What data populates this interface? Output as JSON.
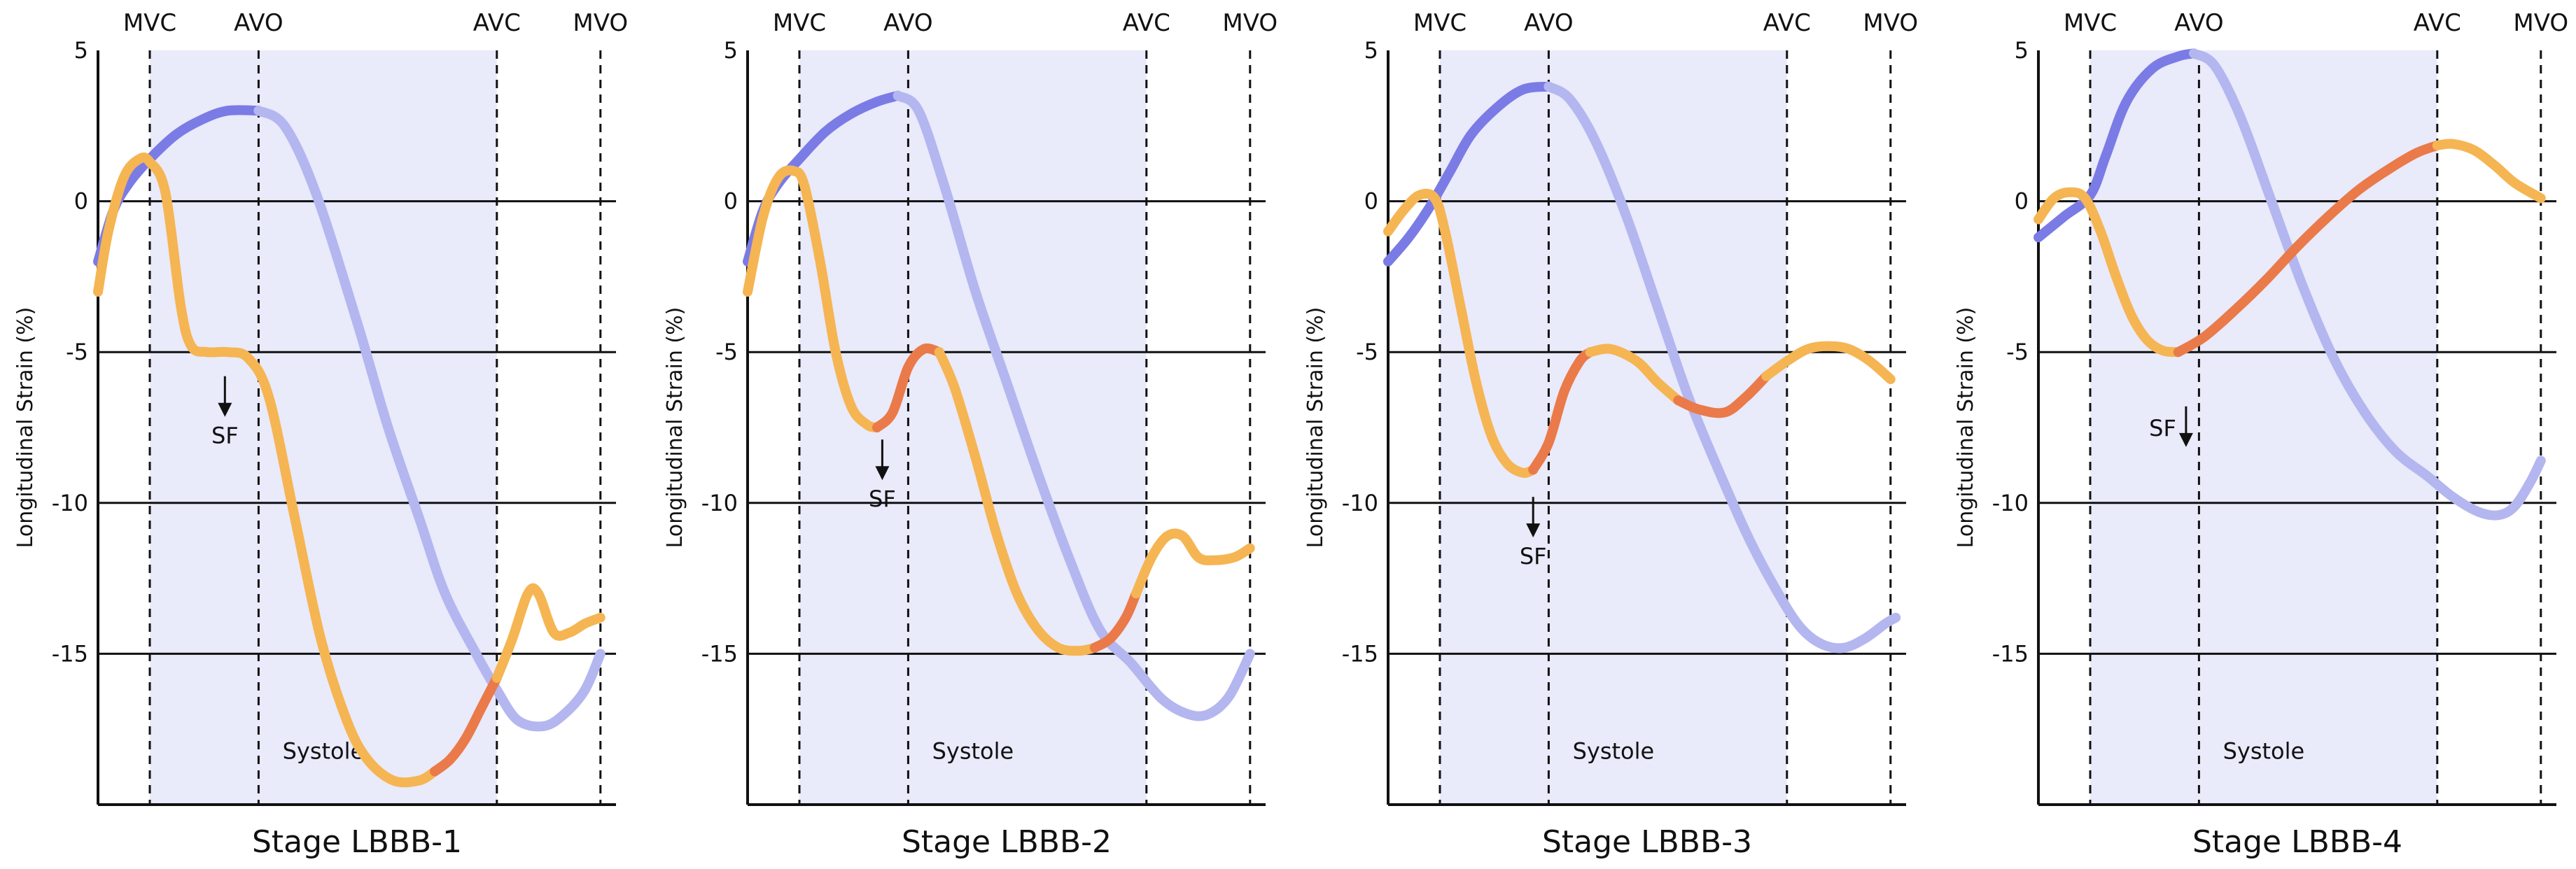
{
  "chart_data": [
    {
      "type": "line",
      "title": "Stage LBBB-1",
      "ylabel": "Longitudinal Strain (%)",
      "yticks": [
        5,
        0,
        -5,
        -10,
        -15
      ],
      "ylim": [
        -20,
        5
      ],
      "xlim": [
        0,
        1
      ],
      "events": [
        {
          "label": "MVC",
          "x": 0.1
        },
        {
          "label": "AVO",
          "x": 0.31
        },
        {
          "label": "AVC",
          "x": 0.77
        },
        {
          "label": "MVO",
          "x": 0.97
        }
      ],
      "shaded_region": {
        "label": "Systole",
        "from": 0.1,
        "to": 0.77
      },
      "annotation": {
        "label": "SF",
        "x": 0.245,
        "y": -5.8
      },
      "series": [
        {
          "role": "dark-blue-segment",
          "color": "#7b7be6",
          "x": [
            0.0,
            0.03,
            0.06,
            0.1,
            0.15,
            0.2,
            0.25,
            0.31
          ],
          "y": [
            -2,
            -0.3,
            0.6,
            1.4,
            2.2,
            2.7,
            3.0,
            3.0
          ]
        },
        {
          "role": "light-blue-segment",
          "color": "#b4b6f0",
          "x": [
            0.31,
            0.36,
            0.42,
            0.5,
            0.56,
            0.62,
            0.67,
            0.73,
            0.77,
            0.81,
            0.86,
            0.9,
            0.94,
            0.97
          ],
          "y": [
            3.0,
            2.5,
            0.3,
            -4.0,
            -7.5,
            -10.5,
            -13.0,
            -15.0,
            -16.2,
            -17.2,
            -17.4,
            -17.0,
            -16.2,
            -15.0
          ]
        },
        {
          "role": "yellow-segment",
          "color": "#f5b553",
          "x": [
            0.0,
            0.02,
            0.05,
            0.08,
            0.1,
            0.13,
            0.16,
            0.18,
            0.21,
            0.25,
            0.29,
            0.33,
            0.38,
            0.43,
            0.48,
            0.52,
            0.57,
            0.62,
            0.65
          ],
          "y": [
            -3,
            -1.0,
            0.8,
            1.4,
            1.3,
            0.3,
            -3.5,
            -4.8,
            -5.0,
            -5.0,
            -5.2,
            -6.5,
            -10.5,
            -14.5,
            -17.2,
            -18.5,
            -19.2,
            -19.2,
            -18.9
          ]
        },
        {
          "role": "orange-segment",
          "color": "#ea7a49",
          "x": [
            0.65,
            0.68,
            0.71,
            0.74,
            0.77
          ],
          "y": [
            -18.9,
            -18.5,
            -17.8,
            -16.8,
            -15.8
          ]
        },
        {
          "role": "yellow-tail",
          "color": "#f5b553",
          "x": [
            0.77,
            0.8,
            0.83,
            0.85,
            0.88,
            0.91,
            0.94,
            0.97
          ],
          "y": [
            -15.8,
            -14.5,
            -13.0,
            -13.0,
            -14.3,
            -14.3,
            -14.0,
            -13.8
          ]
        }
      ]
    },
    {
      "type": "line",
      "title": "Stage LBBB-2",
      "ylabel": "Longitudinal Strain (%)",
      "yticks": [
        5,
        0,
        -5,
        -10,
        -15
      ],
      "ylim": [
        -20,
        5
      ],
      "xlim": [
        0,
        1
      ],
      "events": [
        {
          "label": "MVC",
          "x": 0.1
        },
        {
          "label": "AVO",
          "x": 0.31
        },
        {
          "label": "AVC",
          "x": 0.77
        },
        {
          "label": "MVO",
          "x": 0.97
        }
      ],
      "shaded_region": {
        "label": "Systole",
        "from": 0.1,
        "to": 0.77
      },
      "annotation": {
        "label": "SF",
        "x": 0.26,
        "y": -7.9
      },
      "series": [
        {
          "role": "dark-blue-segment",
          "color": "#7b7be6",
          "x": [
            0.0,
            0.03,
            0.06,
            0.1,
            0.15,
            0.2,
            0.25,
            0.29
          ],
          "y": [
            -2,
            -0.3,
            0.6,
            1.4,
            2.3,
            2.9,
            3.3,
            3.5
          ]
        },
        {
          "role": "light-blue-segment",
          "color": "#b4b6f0",
          "x": [
            0.29,
            0.33,
            0.38,
            0.44,
            0.5,
            0.56,
            0.62,
            0.68,
            0.74,
            0.8,
            0.85,
            0.89,
            0.93,
            0.97
          ],
          "y": [
            3.5,
            3.0,
            0.5,
            -3.0,
            -6.0,
            -9.0,
            -11.8,
            -14.2,
            -15.3,
            -16.5,
            -17.0,
            -17.0,
            -16.4,
            -15.0
          ]
        },
        {
          "role": "yellow-segment",
          "color": "#f5b553",
          "x": [
            0.0,
            0.03,
            0.06,
            0.09,
            0.11,
            0.14,
            0.17,
            0.2,
            0.23,
            0.25
          ],
          "y": [
            -3,
            -0.5,
            0.8,
            1.0,
            0.5,
            -2.0,
            -5.0,
            -6.8,
            -7.4,
            -7.5
          ]
        },
        {
          "role": "orange-bump",
          "color": "#ea7a49",
          "x": [
            0.25,
            0.28,
            0.31,
            0.34,
            0.37
          ],
          "y": [
            -7.5,
            -7.0,
            -5.5,
            -4.9,
            -5.0
          ]
        },
        {
          "role": "yellow-descent",
          "color": "#f5b553",
          "x": [
            0.37,
            0.4,
            0.44,
            0.48,
            0.52,
            0.56,
            0.6,
            0.64,
            0.67
          ],
          "y": [
            -5.0,
            -6.2,
            -8.5,
            -11.0,
            -13.0,
            -14.2,
            -14.8,
            -14.9,
            -14.8
          ]
        },
        {
          "role": "orange-trough",
          "color": "#ea7a49",
          "x": [
            0.67,
            0.7,
            0.73,
            0.75
          ],
          "y": [
            -14.8,
            -14.5,
            -13.8,
            -13.0
          ]
        },
        {
          "role": "yellow-tail",
          "color": "#f5b553",
          "x": [
            0.75,
            0.78,
            0.81,
            0.84,
            0.87,
            0.9,
            0.94,
            0.97
          ],
          "y": [
            -13.0,
            -11.8,
            -11.1,
            -11.1,
            -11.8,
            -11.9,
            -11.8,
            -11.5
          ]
        }
      ]
    },
    {
      "type": "line",
      "title": "Stage LBBB-3",
      "ylabel": "Longitudinal Strain (%)",
      "yticks": [
        5,
        0,
        -5,
        -10,
        -15
      ],
      "ylim": [
        -20,
        5
      ],
      "xlim": [
        0,
        1
      ],
      "events": [
        {
          "label": "MVC",
          "x": 0.1
        },
        {
          "label": "AVO",
          "x": 0.31
        },
        {
          "label": "AVC",
          "x": 0.77
        },
        {
          "label": "MVO",
          "x": 0.97
        }
      ],
      "shaded_region": {
        "label": "Systole",
        "from": 0.1,
        "to": 0.77
      },
      "annotation": {
        "label": "SF",
        "x": 0.28,
        "y": -9.8
      },
      "series": [
        {
          "role": "dark-blue-segment",
          "color": "#7b7be6",
          "x": [
            0.0,
            0.04,
            0.08,
            0.12,
            0.16,
            0.21,
            0.26,
            0.31
          ],
          "y": [
            -2,
            -1.2,
            -0.2,
            1.0,
            2.2,
            3.1,
            3.7,
            3.8
          ]
        },
        {
          "role": "light-blue-segment",
          "color": "#b4b6f0",
          "x": [
            0.31,
            0.35,
            0.4,
            0.46,
            0.52,
            0.58,
            0.64,
            0.7,
            0.76,
            0.8,
            0.84,
            0.88,
            0.92,
            0.96,
            0.98
          ],
          "y": [
            3.8,
            3.4,
            2.0,
            -0.5,
            -3.5,
            -6.5,
            -9.0,
            -11.3,
            -13.2,
            -14.2,
            -14.7,
            -14.8,
            -14.5,
            -14.0,
            -13.8
          ]
        },
        {
          "role": "yellow-segment",
          "color": "#f5b553",
          "x": [
            0.0,
            0.03,
            0.06,
            0.09,
            0.11,
            0.14,
            0.17,
            0.2,
            0.23,
            0.26,
            0.28
          ],
          "y": [
            -1,
            -0.3,
            0.2,
            0.1,
            -1.0,
            -3.5,
            -6.0,
            -7.8,
            -8.7,
            -9.0,
            -8.9
          ]
        },
        {
          "role": "orange-rise",
          "color": "#ea7a49",
          "x": [
            0.28,
            0.31,
            0.34,
            0.37,
            0.39
          ],
          "y": [
            -8.9,
            -8.0,
            -6.3,
            -5.3,
            -5.0
          ]
        },
        {
          "role": "yellow-plateau",
          "color": "#f5b553",
          "x": [
            0.39,
            0.43,
            0.48,
            0.52,
            0.56
          ],
          "y": [
            -5.0,
            -4.9,
            -5.3,
            -6.0,
            -6.6
          ]
        },
        {
          "role": "orange-dip",
          "color": "#ea7a49",
          "x": [
            0.56,
            0.6,
            0.65,
            0.69,
            0.73
          ],
          "y": [
            -6.6,
            -6.9,
            -7.0,
            -6.5,
            -5.8
          ]
        },
        {
          "role": "yellow-tail",
          "color": "#f5b553",
          "x": [
            0.73,
            0.77,
            0.81,
            0.85,
            0.89,
            0.93,
            0.97
          ],
          "y": [
            -5.8,
            -5.3,
            -4.9,
            -4.8,
            -4.9,
            -5.3,
            -5.9
          ]
        }
      ]
    },
    {
      "type": "line",
      "title": "Stage LBBB-4",
      "ylabel": "Longitudinal Strain (%)",
      "yticks": [
        5,
        0,
        -5,
        -10,
        -15
      ],
      "ylim": [
        -20,
        5
      ],
      "xlim": [
        0,
        1
      ],
      "events": [
        {
          "label": "MVC",
          "x": 0.1
        },
        {
          "label": "AVO",
          "x": 0.31
        },
        {
          "label": "AVC",
          "x": 0.77
        },
        {
          "label": "MVO",
          "x": 0.97
        }
      ],
      "shaded_region": {
        "label": "Systole",
        "from": 0.1,
        "to": 0.77
      },
      "annotation": {
        "label": "SF",
        "x": 0.285,
        "y": -6.8
      },
      "series": [
        {
          "role": "dark-blue-segment",
          "color": "#7b7be6",
          "x": [
            0.0,
            0.05,
            0.1,
            0.13,
            0.17,
            0.22,
            0.27,
            0.3
          ],
          "y": [
            -1.2,
            -0.5,
            0.2,
            1.5,
            3.3,
            4.4,
            4.8,
            4.9
          ]
        },
        {
          "role": "light-blue-segment",
          "color": "#b4b6f0",
          "x": [
            0.3,
            0.34,
            0.39,
            0.45,
            0.51,
            0.57,
            0.63,
            0.69,
            0.75,
            0.8,
            0.85,
            0.89,
            0.92,
            0.95,
            0.97
          ],
          "y": [
            4.9,
            4.5,
            2.8,
            0.0,
            -2.8,
            -5.2,
            -7.0,
            -8.3,
            -9.1,
            -9.8,
            -10.3,
            -10.4,
            -10.1,
            -9.3,
            -8.6
          ]
        },
        {
          "role": "yellow-segment",
          "color": "#f5b553",
          "x": [
            0.0,
            0.03,
            0.06,
            0.09,
            0.12,
            0.15,
            0.18,
            0.21,
            0.24,
            0.27
          ],
          "y": [
            -0.6,
            0.1,
            0.3,
            0.1,
            -1.0,
            -2.5,
            -3.8,
            -4.6,
            -4.95,
            -5.0
          ]
        },
        {
          "role": "orange-rise",
          "color": "#ea7a49",
          "x": [
            0.27,
            0.32,
            0.38,
            0.44,
            0.5,
            0.56,
            0.62,
            0.68,
            0.73,
            0.77
          ],
          "y": [
            -5.0,
            -4.5,
            -3.6,
            -2.6,
            -1.5,
            -0.5,
            0.4,
            1.1,
            1.6,
            1.85
          ]
        },
        {
          "role": "yellow-tail",
          "color": "#f5b553",
          "x": [
            0.77,
            0.8,
            0.84,
            0.88,
            0.92,
            0.97
          ],
          "y": [
            1.85,
            1.9,
            1.7,
            1.2,
            0.6,
            0.1
          ]
        }
      ]
    }
  ]
}
